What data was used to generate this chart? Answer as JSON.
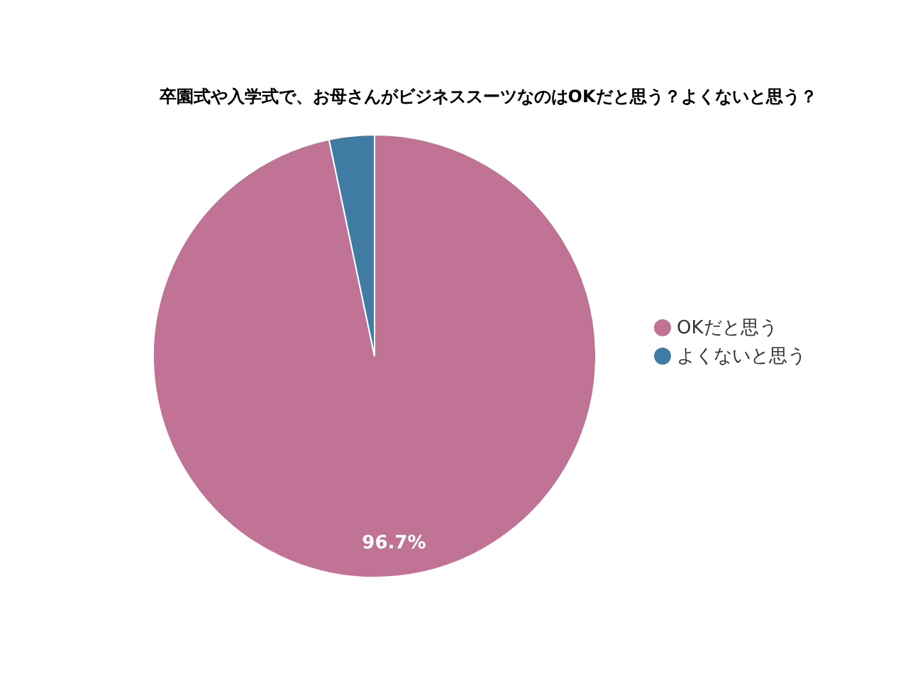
{
  "chart_data": {
    "type": "pie",
    "title": "卒園式や入学式で、お母さんがビジネススーツなのはOKだと思う？よくないと思う？",
    "categories": [
      "OKだと思う",
      "よくないと思う"
    ],
    "values": [
      96.7,
      3.3
    ],
    "colors": [
      "#c07395",
      "#3f7ba3"
    ],
    "value_labels": [
      "96.7%",
      null
    ],
    "legend": "right"
  }
}
